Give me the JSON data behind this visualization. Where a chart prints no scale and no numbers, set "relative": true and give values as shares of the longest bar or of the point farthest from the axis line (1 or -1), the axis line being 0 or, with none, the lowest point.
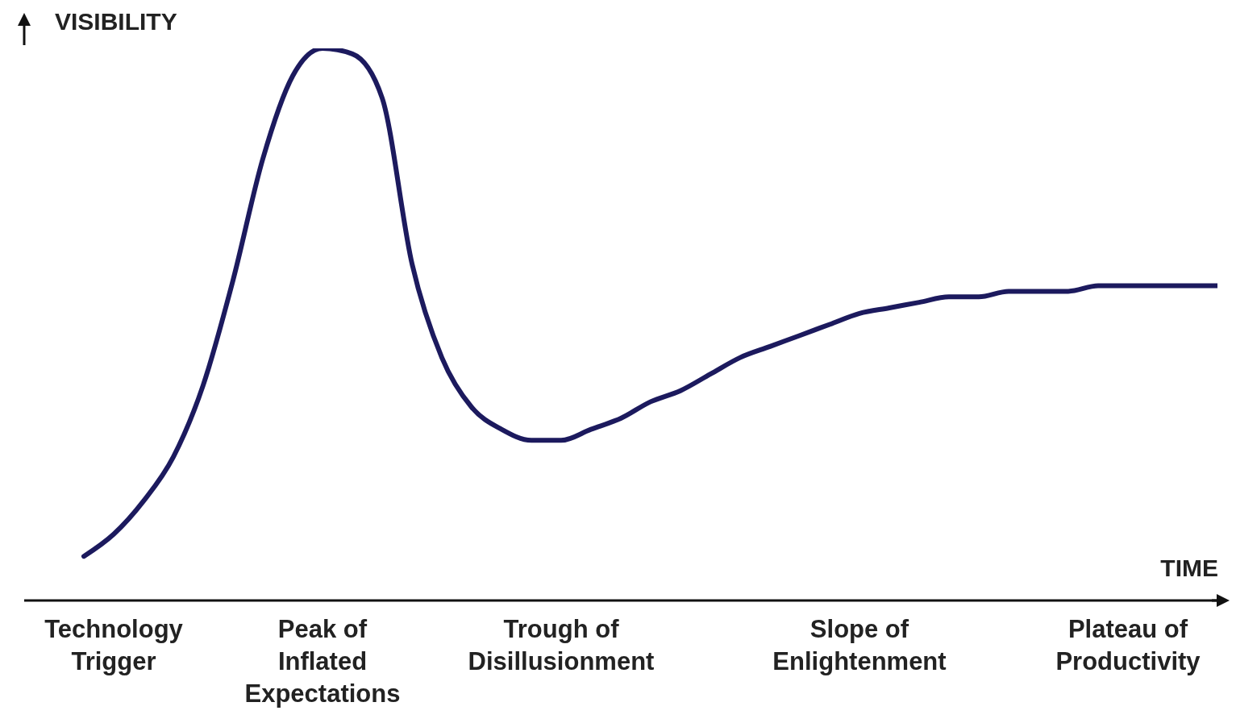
{
  "chart_data": {
    "type": "line",
    "relative": true,
    "xlabel": "TIME",
    "ylabel": "VISIBILITY",
    "color": "#1c1a5e",
    "marker": "none",
    "categories": [
      null,
      null,
      null,
      "Technology Trigger",
      null,
      null,
      null,
      null,
      null,
      null,
      "Peak of Inflated Expectations",
      null,
      null,
      null,
      null,
      null,
      null,
      null,
      "Trough of Disillusionment",
      null,
      null,
      null,
      null,
      null,
      null,
      null,
      null,
      null,
      "Slope of Enlightenment",
      null,
      null,
      null,
      null,
      null,
      null,
      null,
      null,
      "Plateau of Productivity",
      null,
      null,
      null
    ],
    "values": [
      null,
      null,
      0.08,
      0.12,
      0.18,
      0.26,
      0.39,
      0.58,
      0.8,
      0.95,
      1,
      0.99,
      0.91,
      0.61,
      0.44,
      0.35,
      0.31,
      0.29,
      0.29,
      0.31,
      0.33,
      0.36,
      0.38,
      0.41,
      0.44,
      0.46,
      0.48,
      0.5,
      0.52,
      0.53,
      0.54,
      0.55,
      0.55,
      0.56,
      0.56,
      0.56,
      0.57,
      0.57,
      0.57,
      0.57,
      0.57
    ]
  }
}
